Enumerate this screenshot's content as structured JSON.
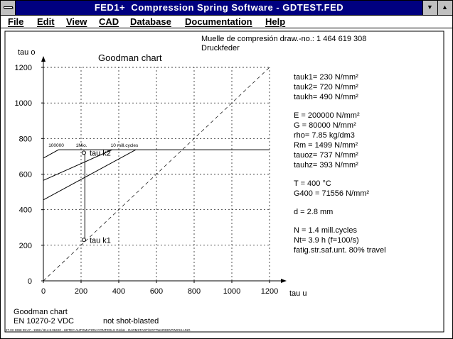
{
  "window": {
    "title": "FED1+  Compression Spring Software - GDTEST.FED",
    "minimize_glyph": "▼",
    "maximize_glyph": "▲"
  },
  "menu": [
    {
      "label": "File"
    },
    {
      "label": "Edit"
    },
    {
      "label": "View"
    },
    {
      "label": "CAD"
    },
    {
      "label": "Database"
    },
    {
      "label": "Documentation"
    },
    {
      "label": "Help"
    }
  ],
  "header": {
    "line1": "Muelle de compresión  draw.-no.: 1 464 619 308",
    "line2": "Druckfeder"
  },
  "chart_data": {
    "type": "line",
    "title": "Goodman chart",
    "xlabel": "tau u",
    "ylabel": "tau o",
    "xlim": [
      0,
      1200
    ],
    "ylim": [
      0,
      1200
    ],
    "xticks": [
      0,
      200,
      400,
      600,
      800,
      1000,
      1200
    ],
    "yticks": [
      0,
      200,
      400,
      600,
      800,
      1000,
      1200
    ],
    "grid": "dashed",
    "series": [
      {
        "name": "100000",
        "x": [
          0,
          80,
          1200
        ],
        "y": [
          690,
          737,
          737
        ]
      },
      {
        "name": "1Mio.",
        "x": [
          0,
          365
        ],
        "y": [
          565,
          737
        ]
      },
      {
        "name": "10 mill.cycles",
        "x": [
          0,
          490
        ],
        "y": [
          455,
          737
        ]
      }
    ],
    "diagonal": {
      "x": [
        0,
        1200
      ],
      "y": [
        0,
        1200
      ]
    },
    "points": [
      {
        "label": "tau k1",
        "x": 230,
        "y": 230
      },
      {
        "label": "tau k2",
        "x": 230,
        "y": 720
      }
    ],
    "stroke_line": {
      "x": [
        220,
        220
      ],
      "y": [
        230,
        720
      ]
    },
    "cycle_labels": [
      "100000",
      "1Mio.",
      "10 mill.cycles"
    ]
  },
  "params": [
    "tauk1=  230 N/mm²",
    "tauk2=  720 N/mm²",
    "taukh=  490 N/mm²",
    "E = 200000 N/mm²",
    "G =  80000 N/mm²",
    "rho=  7.85 kg/dm3",
    "Rm =  1499 N/mm²",
    "tauoz=  737 N/mm²",
    "tauhz=  393 N/mm²",
    "T = 400 °C",
    "G400 = 71556 N/mm²",
    "d  = 2.8 mm",
    "N = 1.4 mill.cycles",
    "Nt= 3.9 h   (f=100/s)",
    "fatig.str.saf.unt. 80% travel"
  ],
  "footer": {
    "title": "Goodman chart",
    "standard": "EN 10270-2 VDC",
    "surface": "not shot-blasted",
    "fineprint": "27.02.1998 09:47 - 1998 / 814.8.08420 - HETEC AUTOMATION CONTROLS GmbH - DARMSTADT/SOFTWAREENTWICKLUNG"
  }
}
